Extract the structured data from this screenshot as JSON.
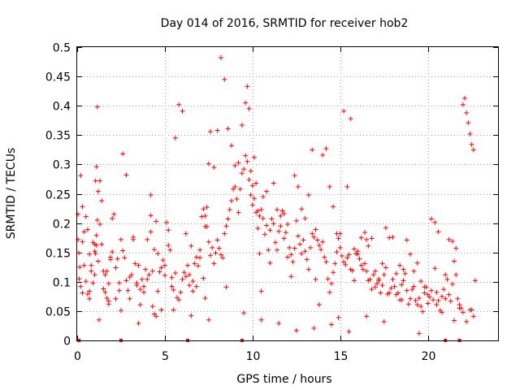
{
  "chart_data": {
    "type": "scatter",
    "title": "Day 014 of 2016, SRMTID for receiver hob2",
    "xlabel": "GPS time / hours",
    "ylabel": "SRMTID / TECUs",
    "xlim": [
      0,
      24
    ],
    "ylim": [
      0,
      0.5
    ],
    "xticks": [
      0,
      5,
      10,
      15,
      20
    ],
    "xtick_labels": [
      "0",
      "5",
      "10",
      "15",
      "20"
    ],
    "yticks": [
      0,
      0.05,
      0.1,
      0.15,
      0.2,
      0.25,
      0.3,
      0.35,
      0.4,
      0.45,
      0.5
    ],
    "ytick_labels": [
      "0",
      "0.05",
      "0.1",
      "0.15",
      "0.2",
      "0.25",
      "0.3",
      "0.35",
      "0.4",
      "0.45",
      "0.5"
    ],
    "grid": true,
    "marker": "+",
    "color": "#ff0000",
    "series": [
      {
        "name": "SRMTID",
        "x": [
          0.05,
          0.12,
          0.2,
          0.3,
          0.4,
          0.5,
          0.6,
          0.7,
          0.8,
          0.9,
          1.0,
          1.05,
          1.1,
          1.15,
          1.2,
          1.3,
          1.4,
          1.5,
          1.6,
          1.7,
          1.8,
          1.9,
          2.0,
          2.1,
          2.2,
          2.3,
          2.4,
          2.5,
          2.6,
          2.7,
          2.8,
          2.9,
          3.0,
          3.1,
          3.2,
          3.3,
          3.4,
          3.5,
          3.6,
          3.7,
          3.8,
          3.9,
          4.0,
          4.1,
          4.2,
          4.3,
          4.4,
          4.5,
          4.6,
          4.7,
          4.8,
          4.9,
          5.0,
          5.1,
          5.2,
          5.3,
          5.4,
          5.5,
          5.6,
          5.7,
          5.8,
          5.9,
          6.0,
          6.1,
          6.2,
          6.3,
          6.4,
          6.5,
          6.6,
          6.7,
          6.8,
          6.9,
          7.0,
          7.1,
          7.2,
          7.3,
          7.4,
          7.5,
          7.6,
          7.7,
          7.8,
          7.9,
          8.0,
          8.1,
          8.2,
          8.3,
          8.4,
          8.5,
          8.6,
          8.7,
          8.8,
          8.9,
          9.0,
          9.1,
          9.2,
          9.3,
          9.4,
          9.5,
          9.6,
          9.7,
          9.8,
          9.9,
          10.0,
          10.1,
          10.2,
          10.3,
          10.4,
          10.5,
          10.6,
          10.7,
          10.8,
          10.9,
          11.0,
          11.1,
          11.2,
          11.3,
          11.4,
          11.5,
          11.6,
          11.7,
          11.8,
          11.9,
          12.0,
          12.1,
          12.2,
          12.3,
          12.4,
          12.5,
          12.6,
          12.7,
          12.8,
          12.9,
          13.0,
          13.1,
          13.2,
          13.3,
          13.4,
          13.5,
          13.6,
          13.7,
          13.8,
          13.9,
          14.0,
          14.1,
          14.2,
          14.3,
          14.4,
          14.5,
          14.6,
          14.7,
          14.8,
          14.9,
          15.0,
          15.1,
          15.2,
          15.3,
          15.4,
          15.5,
          15.6,
          15.7,
          15.8,
          15.9,
          16.0,
          16.1,
          16.2,
          16.3,
          16.4,
          16.5,
          16.6,
          16.7,
          16.8,
          16.9,
          17.0,
          17.1,
          17.2,
          17.3,
          17.4,
          17.5,
          17.6,
          17.7,
          17.8,
          17.9,
          18.0,
          18.1,
          18.2,
          18.3,
          18.4,
          18.5,
          18.6,
          18.7,
          18.8,
          18.9,
          19.0,
          19.1,
          19.2,
          19.3,
          19.4,
          19.5,
          19.6,
          19.7,
          19.8,
          19.9,
          20.0,
          20.1,
          20.2,
          20.3,
          20.4,
          20.5,
          20.6,
          20.7,
          20.8,
          20.9,
          21.0,
          21.1,
          21.2,
          21.3,
          21.4,
          21.5,
          21.6,
          21.7,
          21.8,
          21.9,
          22.0,
          22.1,
          22.2,
          22.3,
          22.4,
          22.5,
          22.6,
          22.7,
          1.0,
          1.05,
          1.1,
          1.1,
          1.15,
          1.0,
          1.2,
          0.05,
          0.15,
          0.1,
          0.2,
          0.3,
          0.4,
          0.5,
          0.6,
          0.7,
          0.8,
          0.9,
          1.3,
          1.4,
          1.5,
          1.6,
          1.7,
          1.8,
          1.9,
          2.0,
          2.2,
          2.4,
          2.6,
          2.8,
          3.0,
          3.2,
          3.4,
          3.6,
          3.8,
          4.0,
          4.2,
          4.2,
          4.3,
          4.4,
          4.6,
          4.8,
          5.0,
          5.2,
          5.4,
          5.6,
          5.8,
          6.0,
          6.2,
          6.4,
          6.6,
          6.8,
          7.0,
          7.2,
          7.3,
          7.3,
          7.4,
          7.5,
          7.6,
          7.8,
          8.0,
          8.2,
          8.4,
          8.6,
          8.8,
          9.0,
          9.2,
          9.4,
          9.6,
          9.7,
          9.8,
          9.9,
          10.0,
          10.1,
          10.2,
          10.3,
          10.4,
          10.5,
          10.6,
          10.8,
          11.0,
          11.2,
          11.4,
          11.6,
          11.8,
          12.0,
          12.2,
          12.4,
          12.6,
          12.8,
          13.0,
          13.2,
          13.4,
          13.6,
          13.8,
          14.0,
          14.2,
          14.4,
          14.6,
          14.8,
          15.0,
          15.2,
          15.4,
          15.6,
          15.8,
          16.0,
          16.2,
          16.4,
          16.5,
          16.6,
          16.8,
          17.0,
          17.2,
          17.4,
          17.6,
          17.8,
          18.0,
          18.2,
          18.4,
          18.6,
          18.8,
          19.0,
          19.2,
          19.4,
          19.6,
          19.8,
          20.0,
          20.2,
          20.4,
          20.6,
          20.8,
          21.0,
          21.2,
          21.4,
          21.6,
          21.8,
          22.0,
          22.2,
          22.4,
          22.6,
          0.3,
          0.7,
          1.25,
          1.8,
          2.5,
          3.5,
          4.5,
          5.5,
          6.5,
          7.5,
          8.5,
          9.5,
          10.5,
          11.5,
          12.5,
          13.5,
          14.5,
          14.9,
          15.5,
          16.5,
          17.5,
          18.5,
          19.5,
          20.5,
          21.5,
          22.5
        ],
        "y": [
          0.172,
          0.105,
          0.092,
          0.168,
          0.128,
          0.211,
          0.189,
          0.147,
          0.118,
          0.098,
          0.164,
          0.272,
          0.296,
          0.398,
          0.254,
          0.198,
          0.164,
          0.118,
          0.082,
          0.072,
          0.097,
          0.138,
          0.208,
          0.215,
          0.124,
          0.139,
          0.098,
          0.172,
          0.153,
          0.141,
          0.102,
          0.085,
          0.071,
          0.112,
          0.176,
          0.131,
          0.094,
          0.128,
          0.087,
          0.104,
          0.092,
          0.121,
          0.172,
          0.112,
          0.185,
          0.118,
          0.155,
          0.203,
          0.148,
          0.117,
          0.124,
          0.137,
          0.128,
          0.201,
          0.188,
          0.154,
          0.092,
          0.086,
          0.115,
          0.073,
          0.069,
          0.082,
          0.104,
          0.116,
          0.109,
          0.128,
          0.094,
          0.161,
          0.101,
          0.131,
          0.142,
          0.127,
          0.154,
          0.211,
          0.224,
          0.212,
          0.194,
          0.168,
          0.145,
          0.158,
          0.131,
          0.149,
          0.171,
          0.157,
          0.146,
          0.141,
          0.182,
          0.195,
          0.207,
          0.223,
          0.238,
          0.258,
          0.262,
          0.241,
          0.218,
          0.258,
          0.285,
          0.292,
          0.315,
          0.305,
          0.274,
          0.248,
          0.231,
          0.242,
          0.218,
          0.191,
          0.212,
          0.223,
          0.208,
          0.181,
          0.196,
          0.154,
          0.188,
          0.207,
          0.199,
          0.167,
          0.154,
          0.186,
          0.212,
          0.221,
          0.174,
          0.184,
          0.198,
          0.158,
          0.146,
          0.134,
          0.157,
          0.204,
          0.178,
          0.164,
          0.148,
          0.171,
          0.152,
          0.138,
          0.121,
          0.158,
          0.182,
          0.176,
          0.189,
          0.171,
          0.162,
          0.155,
          0.168,
          0.142,
          0.134,
          0.105,
          0.082,
          0.097,
          0.116,
          0.131,
          0.182,
          0.174,
          0.158,
          0.144,
          0.134,
          0.129,
          0.141,
          0.146,
          0.121,
          0.119,
          0.156,
          0.148,
          0.152,
          0.139,
          0.128,
          0.121,
          0.131,
          0.118,
          0.102,
          0.104,
          0.087,
          0.112,
          0.091,
          0.097,
          0.105,
          0.081,
          0.094,
          0.112,
          0.124,
          0.079,
          0.081,
          0.089,
          0.104,
          0.092,
          0.078,
          0.081,
          0.069,
          0.095,
          0.102,
          0.114,
          0.085,
          0.062,
          0.071,
          0.087,
          0.092,
          0.068,
          0.061,
          0.072,
          0.058,
          0.049,
          0.081,
          0.091,
          0.063,
          0.074,
          0.085,
          0.069,
          0.123,
          0.082,
          0.068,
          0.051,
          0.048,
          0.087,
          0.112,
          0.104,
          0.078,
          0.067,
          0.096,
          0.135,
          0.112,
          0.071,
          0.061,
          0.055,
          0.402,
          0.413,
          0.388,
          0.371,
          0.352,
          0.334,
          0.325,
          0.102,
          0.112,
          0.148,
          0.162,
          0.179,
          0.205,
          0.152,
          0.135,
          0.215,
          0.125,
          0.149,
          0.281,
          0.228,
          0.185,
          0.101,
          0.079,
          0.084,
          0.128,
          0.167,
          0.272,
          0.238,
          0.088,
          0.112,
          0.118,
          0.062,
          0.142,
          0.151,
          0.071,
          0.085,
          0.318,
          0.282,
          0.108,
          0.172,
          0.098,
          0.061,
          0.082,
          0.104,
          0.248,
          0.213,
          0.058,
          0.045,
          0.084,
          0.052,
          0.111,
          0.162,
          0.107,
          0.345,
          0.402,
          0.391,
          0.182,
          0.112,
          0.084,
          0.092,
          0.141,
          0.106,
          0.072,
          0.194,
          0.227,
          0.301,
          0.356,
          0.295,
          0.358,
          0.482,
          0.445,
          0.361,
          0.332,
          0.298,
          0.303,
          0.367,
          0.405,
          0.433,
          0.395,
          0.289,
          0.264,
          0.312,
          0.268,
          0.221,
          0.148,
          0.084,
          0.245,
          0.254,
          0.132,
          0.268,
          0.223,
          0.195,
          0.216,
          0.142,
          0.109,
          0.281,
          0.262,
          0.224,
          0.208,
          0.248,
          0.325,
          0.104,
          0.061,
          0.316,
          0.327,
          0.262,
          0.228,
          0.151,
          0.182,
          0.391,
          0.262,
          0.378,
          0.102,
          0.147,
          0.175,
          0.184,
          0.172,
          0.161,
          0.174,
          0.118,
          0.102,
          0.131,
          0.192,
          0.175,
          0.176,
          0.114,
          0.128,
          0.121,
          0.171,
          0.147,
          0.118,
          0.132,
          0.101,
          0.091,
          0.078,
          0.207,
          0.201,
          0.185,
          0.075,
          0.071,
          0.172,
          0.169,
          0.157,
          0.055,
          0.048,
          0.032,
          0.052,
          0.041,
          0.081,
          0.071,
          0.035,
          0.067,
          0.051,
          0.029,
          0.041,
          0.052,
          0.042,
          0.035,
          0.091,
          0.047,
          0.035,
          0.029,
          0.017,
          0.021,
          0.027,
          0.039,
          0.015,
          0.041,
          0.032,
          0.069,
          0.012,
          0.061,
          0.034,
          0.052
        ]
      }
    ],
    "baseline_markers_x": [
      0.1,
      2.5,
      6.3,
      9.4,
      21.0,
      21.8
    ]
  }
}
